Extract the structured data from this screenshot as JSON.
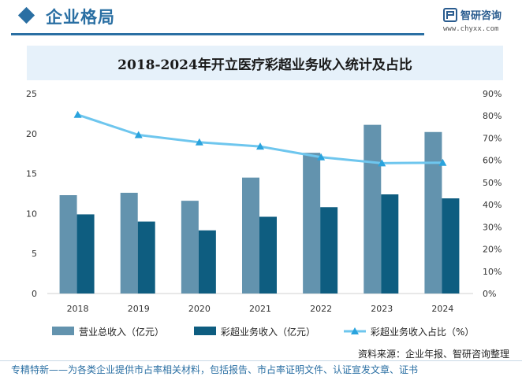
{
  "header": {
    "section_title": "企业格局",
    "brand_name": "智研咨询",
    "brand_url": "www.chyxx.com"
  },
  "chart_data": {
    "type": "bar",
    "title": "2018-2024年开立医疗彩超业务收入统计及占比",
    "categories": [
      "2018",
      "2019",
      "2020",
      "2021",
      "2022",
      "2023",
      "2024"
    ],
    "series": [
      {
        "name": "营业总收入（亿元）",
        "type": "bar",
        "axis": "left",
        "color": "#6393ae",
        "values": [
          12.3,
          12.6,
          11.6,
          14.5,
          17.6,
          21.1,
          20.2
        ]
      },
      {
        "name": "彩超业务收入（亿元）",
        "type": "bar",
        "axis": "left",
        "color": "#0e5d80",
        "values": [
          9.9,
          9.0,
          7.9,
          9.6,
          10.8,
          12.4,
          11.9
        ]
      },
      {
        "name": "彩超业务收入占比（%）",
        "type": "line",
        "axis": "right",
        "color": "#6ec6ee",
        "values": [
          80.5,
          71.4,
          68.1,
          66.2,
          61.4,
          58.7,
          58.9
        ]
      }
    ],
    "y_left": {
      "min": 0,
      "max": 25,
      "ticks": [
        0,
        5,
        10,
        15,
        20,
        25
      ]
    },
    "y_right": {
      "min": 0,
      "max": 90,
      "ticks": [
        "0%",
        "10%",
        "20%",
        "30%",
        "40%",
        "50%",
        "60%",
        "70%",
        "80%",
        "90%"
      ]
    },
    "grid": false,
    "legend_position": "bottom-left"
  },
  "source_text": "资料来源：企业年报、智研咨询整理",
  "footer_text": "专精特新——为各类企业提供市占率相关材料，包括报告、市占率证明文件、认证宣发文章、证书"
}
